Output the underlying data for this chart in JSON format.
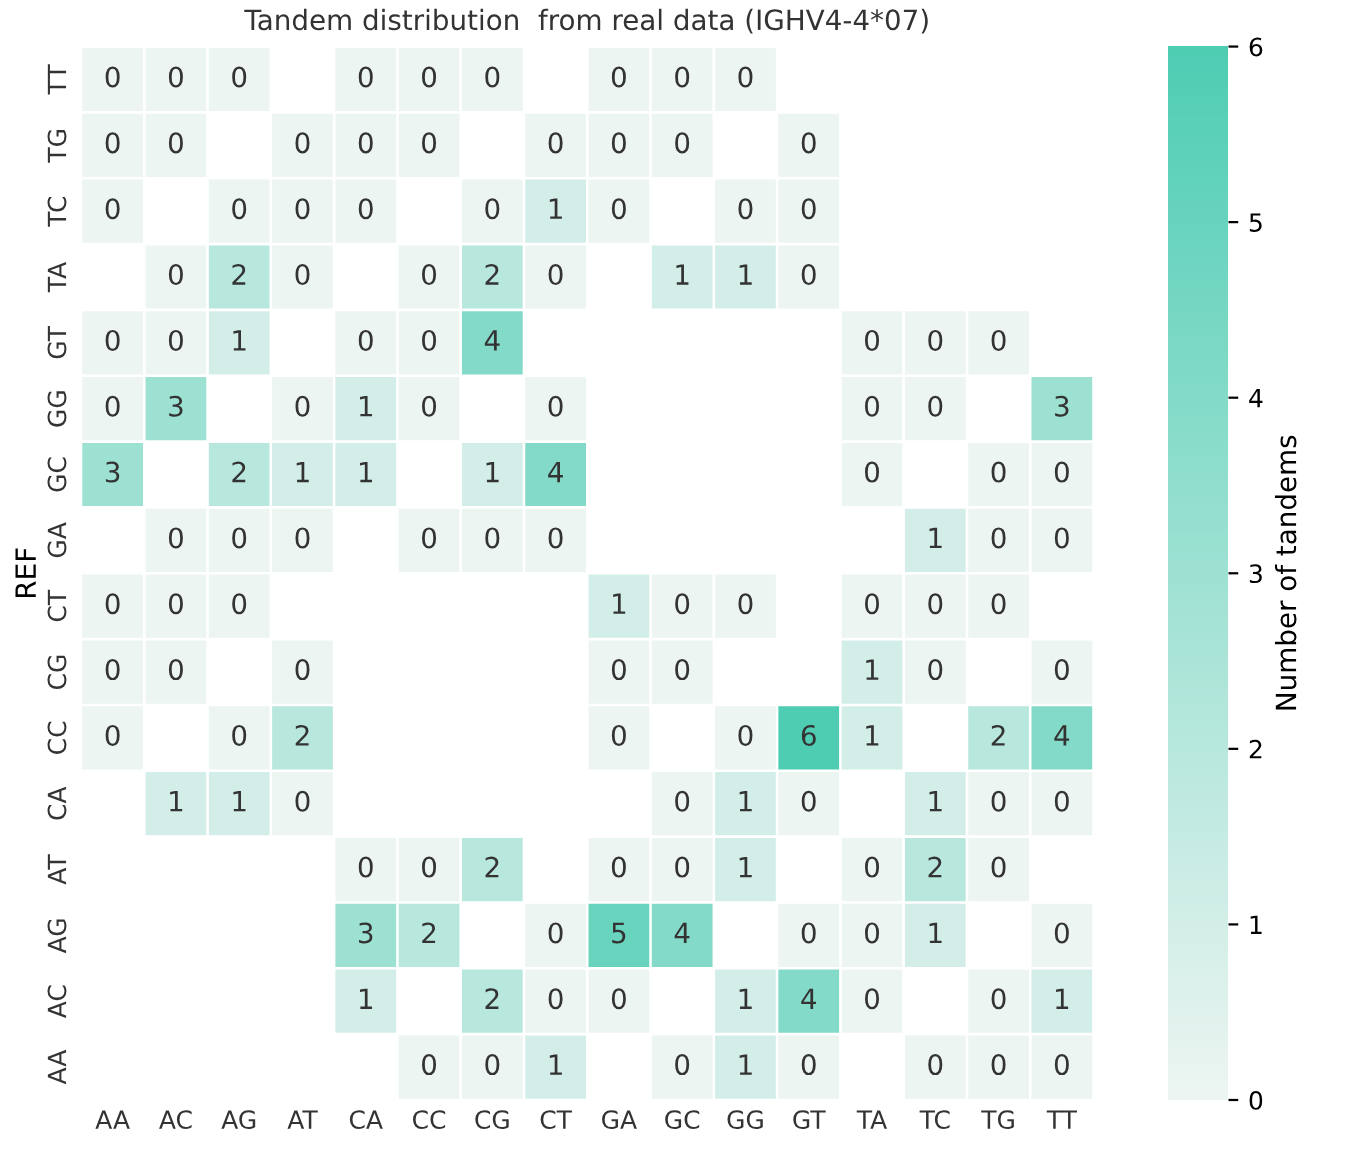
{
  "chart_data": {
    "type": "heatmap",
    "title": "Tandem distribution  from real data (IGHV4-4*07)",
    "ylabel": "REF",
    "clabel": "Number of tandems",
    "categories": [
      "AA",
      "AC",
      "AG",
      "AT",
      "CA",
      "CC",
      "CG",
      "CT",
      "GA",
      "GC",
      "GG",
      "GT",
      "TA",
      "TC",
      "TG",
      "TT"
    ],
    "y_categories": [
      "TT",
      "TG",
      "TC",
      "TA",
      "GT",
      "GG",
      "GC",
      "GA",
      "CT",
      "CG",
      "CC",
      "CA",
      "AT",
      "AG",
      "AC",
      "AA"
    ],
    "cells": [
      [
        0,
        0,
        0,
        null,
        0,
        0,
        0,
        null,
        0,
        0,
        0,
        null,
        null,
        null,
        null,
        null
      ],
      [
        0,
        0,
        null,
        0,
        0,
        0,
        null,
        0,
        0,
        0,
        null,
        0,
        null,
        null,
        null,
        null
      ],
      [
        0,
        null,
        0,
        0,
        0,
        null,
        0,
        1,
        0,
        null,
        0,
        0,
        null,
        null,
        null,
        null
      ],
      [
        null,
        0,
        2,
        0,
        null,
        0,
        2,
        0,
        null,
        1,
        1,
        0,
        null,
        null,
        null,
        null
      ],
      [
        0,
        0,
        1,
        null,
        0,
        0,
        4,
        null,
        null,
        null,
        null,
        null,
        0,
        0,
        0,
        null
      ],
      [
        0,
        3,
        null,
        0,
        1,
        0,
        null,
        0,
        null,
        null,
        null,
        null,
        0,
        0,
        null,
        3
      ],
      [
        3,
        null,
        2,
        1,
        1,
        null,
        1,
        4,
        null,
        null,
        null,
        null,
        0,
        null,
        0,
        0
      ],
      [
        null,
        0,
        0,
        0,
        null,
        0,
        0,
        0,
        null,
        null,
        null,
        null,
        null,
        1,
        0,
        0
      ],
      [
        0,
        0,
        0,
        null,
        null,
        null,
        null,
        null,
        1,
        0,
        0,
        null,
        0,
        0,
        0,
        null
      ],
      [
        0,
        0,
        null,
        0,
        null,
        null,
        null,
        null,
        0,
        0,
        null,
        null,
        1,
        0,
        null,
        0
      ],
      [
        0,
        null,
        0,
        2,
        null,
        null,
        null,
        null,
        0,
        null,
        0,
        6,
        1,
        null,
        2,
        4
      ],
      [
        null,
        1,
        1,
        0,
        null,
        null,
        null,
        null,
        null,
        0,
        1,
        0,
        null,
        1,
        0,
        0
      ],
      [
        null,
        null,
        null,
        null,
        0,
        0,
        2,
        null,
        0,
        0,
        1,
        null,
        0,
        2,
        0,
        null
      ],
      [
        null,
        null,
        null,
        null,
        3,
        2,
        null,
        0,
        5,
        4,
        null,
        0,
        0,
        1,
        null,
        0
      ],
      [
        null,
        null,
        null,
        null,
        1,
        null,
        2,
        0,
        0,
        null,
        1,
        4,
        0,
        null,
        0,
        1
      ],
      [
        null,
        null,
        null,
        null,
        null,
        0,
        0,
        1,
        null,
        0,
        1,
        0,
        null,
        0,
        0,
        0
      ]
    ],
    "clim": [
      0,
      6
    ],
    "cticks": [
      0,
      1,
      2,
      3,
      4,
      5,
      6
    ],
    "data_labels": true
  }
}
